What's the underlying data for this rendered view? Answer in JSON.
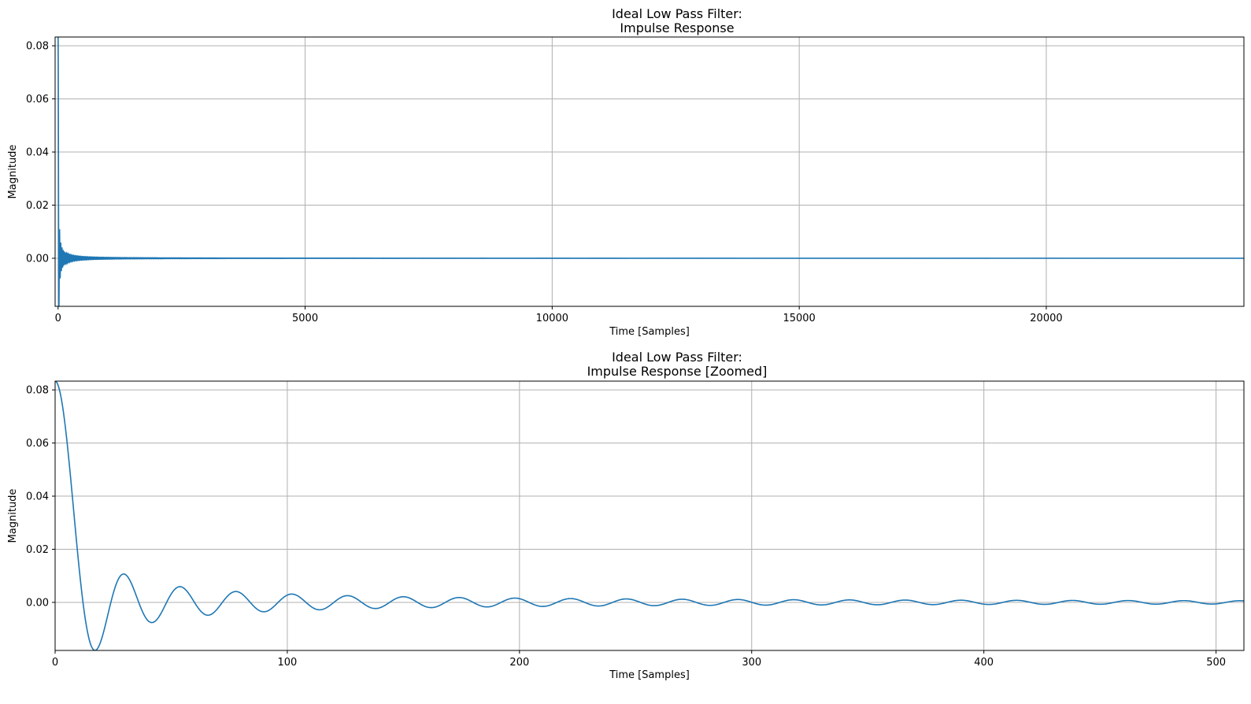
{
  "chart_data": [
    {
      "type": "line",
      "title": [
        "Ideal Low Pass Filter:",
        "Impulse Response"
      ],
      "xlabel": "Time [Samples]",
      "ylabel": "Magnitude",
      "xlim": [
        -60,
        24000
      ],
      "ylim": [
        -0.0181,
        0.0833
      ],
      "xticks": [
        0,
        5000,
        10000,
        15000,
        20000
      ],
      "xtick_labels": [
        "0",
        "5000",
        "10000",
        "15000",
        "20000"
      ],
      "yticks": [
        0.0,
        0.02,
        0.04,
        0.06,
        0.08
      ],
      "ytick_labels": [
        "0.00",
        "0.02",
        "0.04",
        "0.06",
        "0.08"
      ],
      "grid": true,
      "series": [
        {
          "color": "#1f77b4",
          "function": "sinc",
          "peak": 0.0833,
          "cutoff": 0.04165,
          "x_range": [
            0,
            24000
          ]
        }
      ]
    },
    {
      "type": "line",
      "title": [
        "Ideal Low Pass Filter:",
        "Impulse Response [Zoomed]"
      ],
      "xlabel": "Time [Samples]",
      "ylabel": "Magnitude",
      "xlim": [
        0,
        512
      ],
      "ylim": [
        -0.0181,
        0.0833
      ],
      "xticks": [
        0,
        100,
        200,
        300,
        400,
        500
      ],
      "xtick_labels": [
        "0",
        "100",
        "200",
        "300",
        "400",
        "500"
      ],
      "yticks": [
        0.0,
        0.02,
        0.04,
        0.06,
        0.08
      ],
      "ytick_labels": [
        "0.00",
        "0.02",
        "0.04",
        "0.06",
        "0.08"
      ],
      "grid": true,
      "series": [
        {
          "color": "#1f77b4",
          "function": "sinc",
          "peak": 0.0833,
          "cutoff": 0.04165,
          "x_range": [
            0,
            512
          ]
        }
      ]
    }
  ]
}
